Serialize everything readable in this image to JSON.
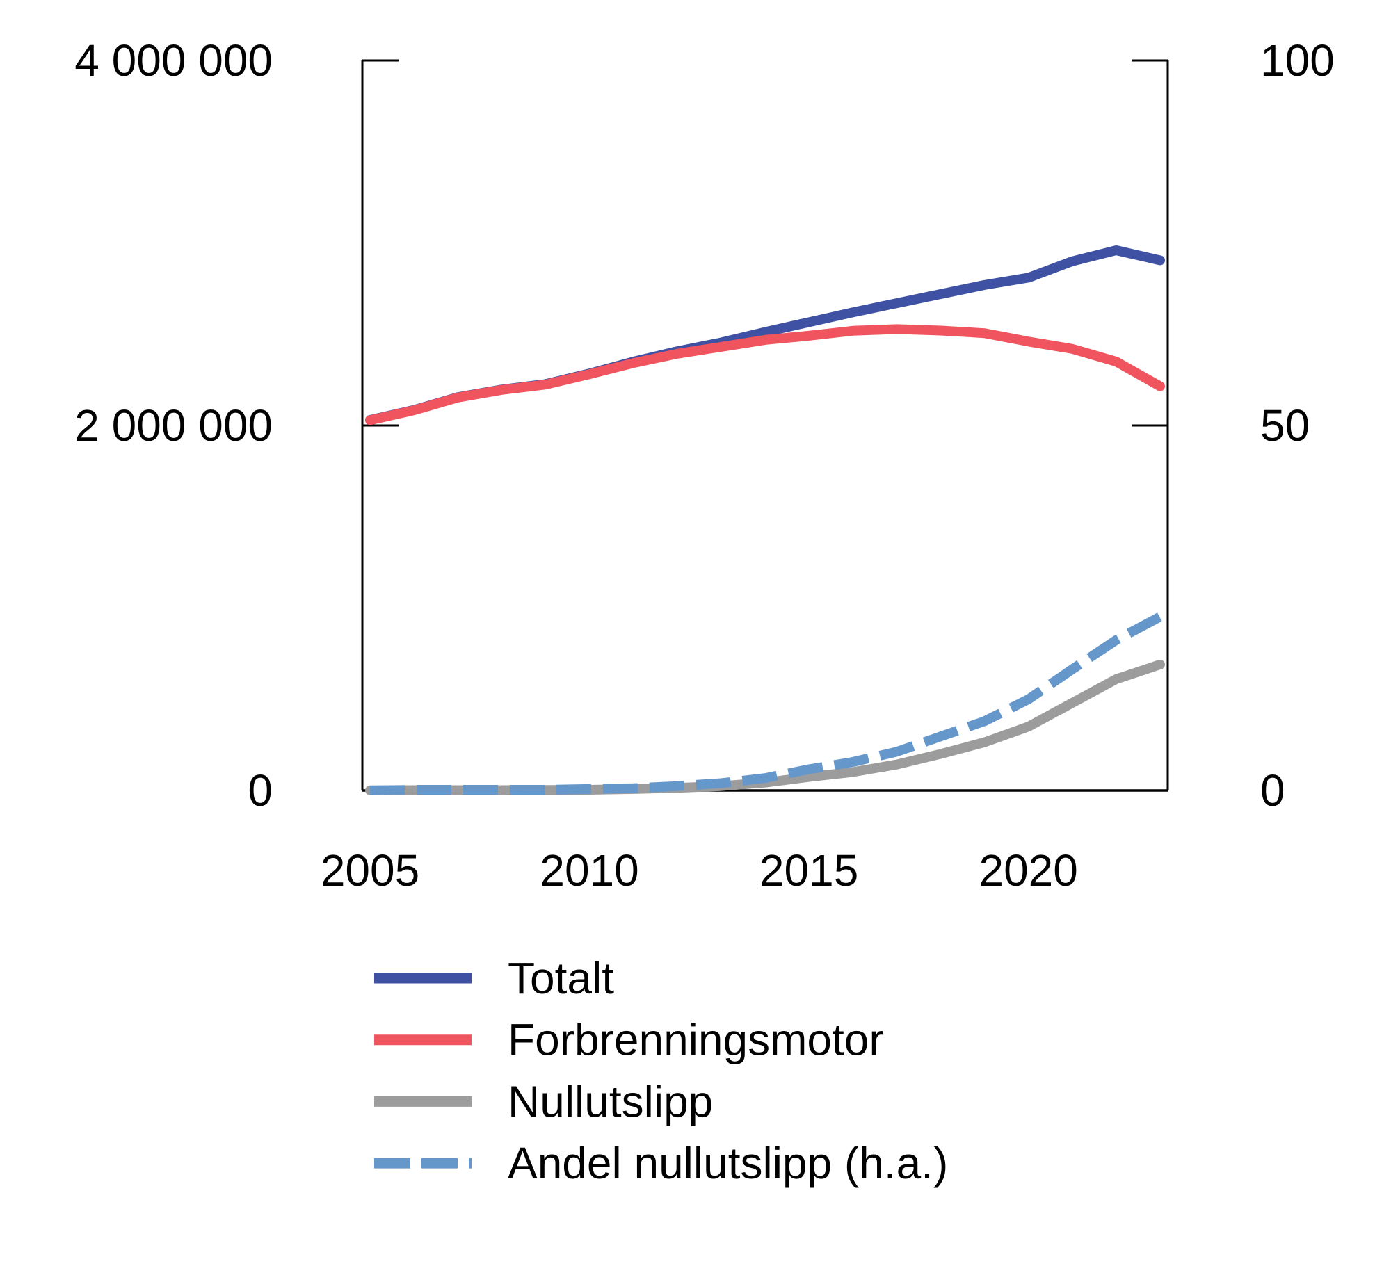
{
  "chart_data": {
    "type": "line",
    "x": [
      2005,
      2006,
      2007,
      2008,
      2009,
      2010,
      2011,
      2012,
      2013,
      2014,
      2015,
      2016,
      2017,
      2018,
      2019,
      2020,
      2021,
      2022,
      2023
    ],
    "series": [
      {
        "name": "Totalt",
        "axis": "left",
        "style": "solid",
        "color": "#3E51A2",
        "values": [
          2030000,
          2085000,
          2155000,
          2197000,
          2227000,
          2285000,
          2350000,
          2407000,
          2455000,
          2512000,
          2566000,
          2620000,
          2670000,
          2720000,
          2770000,
          2810000,
          2900000,
          2960000,
          2905000
        ]
      },
      {
        "name": "Forbrenningsmotor",
        "axis": "left",
        "style": "solid",
        "color": "#F0545E",
        "values": [
          2029000,
          2083000,
          2153000,
          2195000,
          2224000,
          2281000,
          2342000,
          2393000,
          2431000,
          2469000,
          2492000,
          2519000,
          2528000,
          2520000,
          2506000,
          2460000,
          2420000,
          2350000,
          2215000
        ]
      },
      {
        "name": "Nullutslipp",
        "axis": "left",
        "style": "solid",
        "color": "#9C9C9C",
        "values": [
          1000,
          2000,
          2000,
          2000,
          3000,
          4000,
          8000,
          14000,
          24000,
          43000,
          74000,
          101000,
          142000,
          200000,
          264000,
          350000,
          480000,
          610000,
          690000
        ]
      },
      {
        "name": "Andel nullutslipp (h.a.)",
        "axis": "right",
        "style": "dashed",
        "color": "#6597CB",
        "values": [
          0.0,
          0.1,
          0.1,
          0.1,
          0.1,
          0.2,
          0.3,
          0.6,
          1.0,
          1.7,
          2.9,
          3.9,
          5.3,
          7.4,
          9.5,
          12.5,
          16.6,
          20.6,
          23.8
        ]
      }
    ],
    "left_axis": {
      "range": [
        0,
        4000000
      ],
      "ticks": [
        {
          "value": 4000000,
          "label": "4 000 000"
        },
        {
          "value": 2000000,
          "label": "2 000 000"
        },
        {
          "value": 0,
          "label": "0"
        }
      ]
    },
    "right_axis": {
      "range": [
        0,
        100
      ],
      "ticks": [
        {
          "value": 100,
          "label": "100"
        },
        {
          "value": 50,
          "label": "50"
        },
        {
          "value": 0,
          "label": "0"
        }
      ]
    },
    "x_axis": {
      "ticks": [
        {
          "value": 2005,
          "label": "2005"
        },
        {
          "value": 2010,
          "label": "2010"
        },
        {
          "value": 2015,
          "label": "2015"
        },
        {
          "value": 2020,
          "label": "2020"
        }
      ]
    },
    "grid": false,
    "legend_position": "bottom-left"
  }
}
